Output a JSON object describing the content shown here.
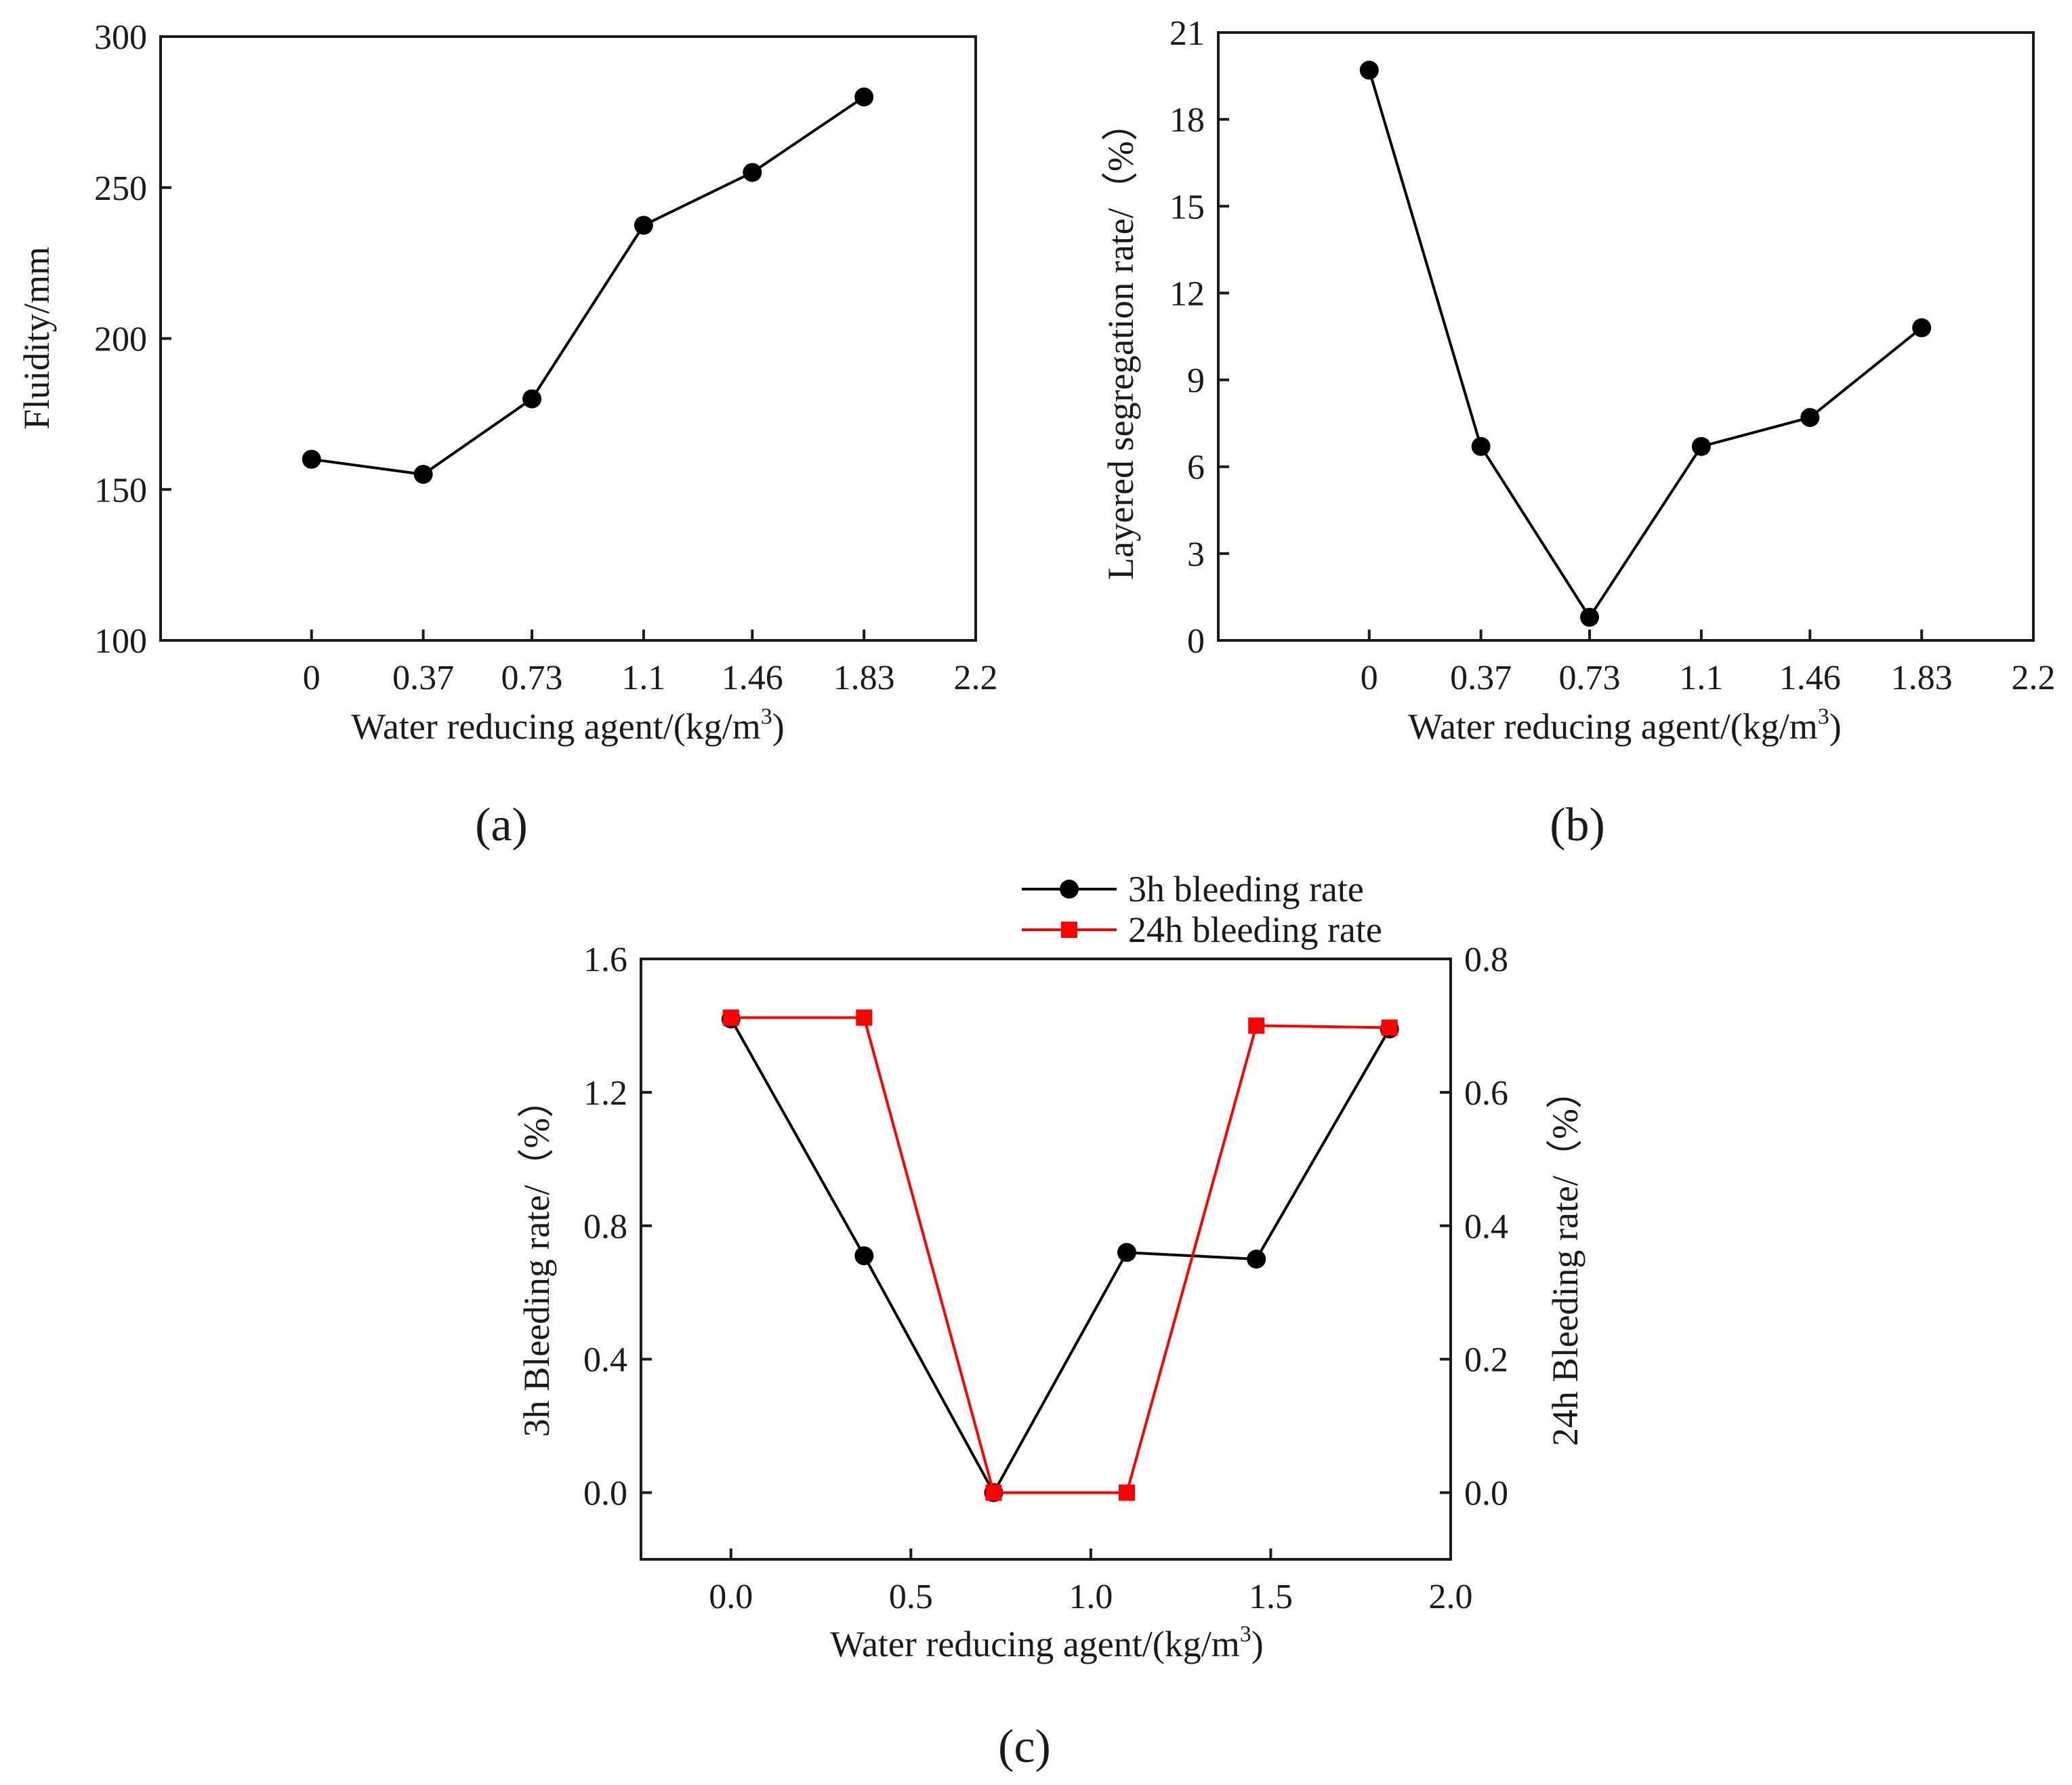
{
  "chart_data": [
    {
      "id": "a",
      "type": "line",
      "caption": "(a)",
      "xlabel": "Water reducing agent/(kg/m",
      "xlabel_sup": "3",
      "xlabel_end": ")",
      "ylabel": "Fluidity/mm",
      "xlim": [
        -0.5,
        2.2
      ],
      "ylim": [
        100,
        300
      ],
      "xticks": [
        0,
        0.37,
        0.73,
        1.1,
        1.46,
        1.83,
        2.2
      ],
      "xtick_labels": [
        "0",
        "0.37",
        "0.73",
        "1.1",
        "1.46",
        "1.83",
        "2.2"
      ],
      "yticks": [
        100,
        150,
        200,
        250,
        300
      ],
      "ytick_labels": [
        "100",
        "150",
        "200",
        "250",
        "300"
      ],
      "series": [
        {
          "name": "Fluidity",
          "color": "#000000",
          "marker": "circle",
          "x": [
            0,
            0.37,
            0.73,
            1.1,
            1.46,
            1.83
          ],
          "y": [
            160,
            155,
            180,
            237.5,
            255,
            280
          ]
        }
      ]
    },
    {
      "id": "b",
      "type": "line",
      "caption": "(b)",
      "xlabel": "Water reducing agent/(kg/m",
      "xlabel_sup": "3",
      "xlabel_end": ")",
      "ylabel": "Layered segregation rate/（%）",
      "xlim": [
        -0.5,
        2.2
      ],
      "ylim": [
        0,
        21
      ],
      "xticks": [
        0,
        0.37,
        0.73,
        1.1,
        1.46,
        1.83,
        2.2
      ],
      "xtick_labels": [
        "0",
        "0.37",
        "0.73",
        "1.1",
        "1.46",
        "1.83",
        "2.2"
      ],
      "yticks": [
        0,
        3,
        6,
        9,
        12,
        15,
        18,
        21
      ],
      "ytick_labels": [
        "0",
        "3",
        "6",
        "9",
        "12",
        "15",
        "18",
        "21"
      ],
      "series": [
        {
          "name": "Layered segregation rate",
          "color": "#000000",
          "marker": "circle",
          "x": [
            0,
            0.37,
            0.73,
            1.1,
            1.46,
            1.83
          ],
          "y": [
            19.7,
            6.7,
            0.8,
            6.7,
            7.7,
            10.8
          ]
        }
      ]
    },
    {
      "id": "c",
      "type": "line",
      "caption": "(c)",
      "xlabel": "Water reducing agent/(kg/m",
      "xlabel_sup": "3",
      "xlabel_end": ")",
      "ylabel": "3h Bleeding rate/（%）",
      "ylabel_right": "24h Bleeding rate/（%）",
      "xlim": [
        -0.25,
        2.0
      ],
      "ylim": [
        -0.2,
        1.6
      ],
      "ylim_right": [
        -0.1,
        0.8
      ],
      "xticks": [
        0,
        0.5,
        1,
        1.5,
        2
      ],
      "xtick_labels": [
        "0.0",
        "0.5",
        "1.0",
        "1.5",
        "2.0"
      ],
      "yticks": [
        0,
        0.4,
        0.8,
        1.2,
        1.6
      ],
      "ytick_labels": [
        "0.0",
        "0.4",
        "0.8",
        "1.2",
        "1.6"
      ],
      "yticks_right": [
        0,
        0.2,
        0.4,
        0.6,
        0.8
      ],
      "ytick_labels_right": [
        "0.0",
        "0.2",
        "0.4",
        "0.6",
        "0.8"
      ],
      "legend_position": "top",
      "series": [
        {
          "name": "3h bleeding rate",
          "color": "#000000",
          "marker": "circle",
          "axis": "left",
          "x": [
            0,
            0.37,
            0.73,
            1.1,
            1.46,
            1.83
          ],
          "y": [
            1.42,
            0.71,
            0.0,
            0.72,
            0.7,
            1.39
          ]
        },
        {
          "name": "24h bleeding rate",
          "color": "#ff0000",
          "marker": "square",
          "axis": "right",
          "x": [
            0,
            0.37,
            0.73,
            1.1,
            1.46,
            1.83
          ],
          "y": [
            0.712,
            0.712,
            0.0,
            0.0,
            0.7,
            0.697
          ]
        }
      ]
    }
  ]
}
